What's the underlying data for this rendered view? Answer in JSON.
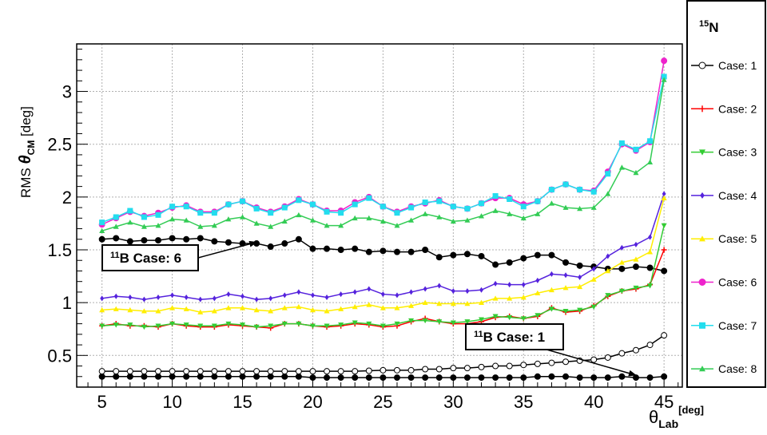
{
  "chart_data": {
    "type": "line",
    "legend": {
      "title_sup": "15",
      "title_main": "N",
      "placement": "right"
    },
    "xlabel": {
      "main": "θ",
      "sub": "Lab",
      "sup": "[deg]"
    },
    "ylabel": {
      "prefix": "RMS ",
      "main": "θ",
      "sub": "CM",
      "suffix": " [deg]"
    },
    "xlim": [
      3.2,
      46.3
    ],
    "ylim": [
      0.2,
      3.45
    ],
    "xticks": [
      5,
      10,
      15,
      20,
      25,
      30,
      35,
      40,
      45
    ],
    "yticks": [
      0.5,
      1,
      1.5,
      2,
      2.5,
      3
    ],
    "xtick_labels": [
      "5",
      "10",
      "15",
      "20",
      "25",
      "30",
      "35",
      "40",
      "45"
    ],
    "ytick_labels": [
      "0.5",
      "1",
      "1.5",
      "2",
      "2.5",
      "3"
    ],
    "grid": true,
    "x": [
      5,
      6,
      7,
      8,
      9,
      10,
      11,
      12,
      13,
      14,
      15,
      16,
      17,
      18,
      19,
      20,
      21,
      22,
      23,
      24,
      25,
      26,
      27,
      28,
      29,
      30,
      31,
      32,
      33,
      34,
      35,
      36,
      37,
      38,
      39,
      40,
      41,
      42,
      43,
      44,
      45
    ],
    "series": [
      {
        "name": "Case: 1",
        "color": "#000000",
        "marker": "open-circle",
        "values": [
          0.35,
          0.35,
          0.35,
          0.35,
          0.35,
          0.35,
          0.35,
          0.35,
          0.35,
          0.35,
          0.35,
          0.35,
          0.35,
          0.35,
          0.35,
          0.35,
          0.35,
          0.35,
          0.35,
          0.355,
          0.36,
          0.36,
          0.36,
          0.37,
          0.37,
          0.38,
          0.38,
          0.39,
          0.4,
          0.4,
          0.41,
          0.42,
          0.43,
          0.44,
          0.45,
          0.46,
          0.48,
          0.52,
          0.55,
          0.6,
          0.69
        ]
      },
      {
        "name": "Case: 2",
        "color": "#ff0000",
        "marker": "plus",
        "values": [
          0.78,
          0.8,
          0.78,
          0.78,
          0.77,
          0.8,
          0.78,
          0.77,
          0.77,
          0.79,
          0.78,
          0.77,
          0.76,
          0.8,
          0.8,
          0.78,
          0.77,
          0.78,
          0.8,
          0.79,
          0.77,
          0.78,
          0.82,
          0.85,
          0.82,
          0.8,
          0.8,
          0.82,
          0.86,
          0.87,
          0.85,
          0.87,
          0.95,
          0.91,
          0.92,
          0.97,
          1.06,
          1.11,
          1.13,
          1.17,
          1.5
        ]
      },
      {
        "name": "Case: 3",
        "color": "#33cc33",
        "marker": "triangle-down",
        "values": [
          0.78,
          0.79,
          0.79,
          0.77,
          0.78,
          0.8,
          0.79,
          0.78,
          0.78,
          0.8,
          0.79,
          0.77,
          0.78,
          0.8,
          0.8,
          0.78,
          0.78,
          0.79,
          0.81,
          0.8,
          0.78,
          0.8,
          0.83,
          0.83,
          0.82,
          0.81,
          0.82,
          0.84,
          0.87,
          0.86,
          0.85,
          0.88,
          0.94,
          0.92,
          0.93,
          0.96,
          1.07,
          1.11,
          1.14,
          1.16,
          1.73
        ]
      },
      {
        "name": "Case: 4",
        "color": "#5522dd",
        "marker": "diamond",
        "values": [
          1.04,
          1.06,
          1.05,
          1.03,
          1.05,
          1.07,
          1.05,
          1.03,
          1.04,
          1.08,
          1.06,
          1.03,
          1.04,
          1.07,
          1.1,
          1.07,
          1.05,
          1.08,
          1.1,
          1.13,
          1.08,
          1.07,
          1.1,
          1.13,
          1.16,
          1.11,
          1.11,
          1.12,
          1.18,
          1.17,
          1.17,
          1.21,
          1.27,
          1.26,
          1.24,
          1.32,
          1.44,
          1.52,
          1.55,
          1.62,
          2.03
        ]
      },
      {
        "name": "Case: 5",
        "color": "#ffee00",
        "marker": "triangle-up",
        "values": [
          0.93,
          0.94,
          0.93,
          0.92,
          0.92,
          0.95,
          0.94,
          0.91,
          0.92,
          0.95,
          0.95,
          0.93,
          0.92,
          0.95,
          0.96,
          0.93,
          0.92,
          0.94,
          0.96,
          0.98,
          0.95,
          0.95,
          0.97,
          1.0,
          0.99,
          0.99,
          0.99,
          1.0,
          1.04,
          1.04,
          1.05,
          1.09,
          1.12,
          1.14,
          1.15,
          1.22,
          1.3,
          1.38,
          1.41,
          1.48,
          1.99
        ]
      },
      {
        "name": "Case: 6",
        "color": "#ee22cc",
        "marker": "circle",
        "values": [
          1.74,
          1.8,
          1.86,
          1.82,
          1.85,
          1.9,
          1.92,
          1.86,
          1.86,
          1.93,
          1.96,
          1.9,
          1.86,
          1.91,
          1.98,
          1.93,
          1.87,
          1.87,
          1.95,
          2.0,
          1.91,
          1.86,
          1.91,
          1.94,
          1.97,
          1.91,
          1.89,
          1.94,
          1.99,
          1.99,
          1.93,
          1.96,
          2.07,
          2.12,
          2.07,
          2.06,
          2.24,
          2.5,
          2.44,
          2.52,
          3.29
        ]
      },
      {
        "name": "Case: 7",
        "color": "#22ddee",
        "marker": "square",
        "values": [
          1.76,
          1.81,
          1.87,
          1.81,
          1.83,
          1.91,
          1.91,
          1.85,
          1.85,
          1.93,
          1.96,
          1.89,
          1.85,
          1.9,
          1.97,
          1.93,
          1.86,
          1.85,
          1.93,
          1.99,
          1.91,
          1.85,
          1.9,
          1.95,
          1.96,
          1.91,
          1.89,
          1.94,
          2.01,
          1.98,
          1.91,
          1.96,
          2.07,
          2.12,
          2.07,
          2.05,
          2.22,
          2.51,
          2.45,
          2.53,
          3.14
        ]
      },
      {
        "name": "Case: 8",
        "color": "#33cc55",
        "marker": "triangle-up",
        "values": [
          1.68,
          1.72,
          1.76,
          1.72,
          1.73,
          1.79,
          1.78,
          1.72,
          1.73,
          1.79,
          1.81,
          1.75,
          1.72,
          1.77,
          1.83,
          1.78,
          1.73,
          1.73,
          1.8,
          1.8,
          1.77,
          1.73,
          1.78,
          1.84,
          1.81,
          1.77,
          1.78,
          1.82,
          1.87,
          1.84,
          1.8,
          1.84,
          1.94,
          1.9,
          1.89,
          1.9,
          2.03,
          2.28,
          2.23,
          2.33,
          3.11
        ]
      }
    ],
    "extra_series": [
      {
        "label": "B Case: 6",
        "color": "#000000",
        "marker": "circle",
        "values": [
          1.6,
          1.61,
          1.58,
          1.59,
          1.59,
          1.61,
          1.6,
          1.61,
          1.58,
          1.57,
          1.56,
          1.56,
          1.53,
          1.56,
          1.6,
          1.51,
          1.51,
          1.5,
          1.51,
          1.48,
          1.49,
          1.48,
          1.48,
          1.5,
          1.43,
          1.45,
          1.46,
          1.44,
          1.36,
          1.38,
          1.42,
          1.45,
          1.45,
          1.38,
          1.35,
          1.34,
          1.32,
          1.32,
          1.34,
          1.33,
          1.3
        ]
      },
      {
        "label": "B Case: 1",
        "color": "#000000",
        "marker": "circle",
        "values": [
          0.3,
          0.3,
          0.3,
          0.3,
          0.3,
          0.3,
          0.3,
          0.3,
          0.3,
          0.3,
          0.3,
          0.3,
          0.3,
          0.3,
          0.3,
          0.29,
          0.29,
          0.29,
          0.29,
          0.29,
          0.29,
          0.29,
          0.29,
          0.29,
          0.29,
          0.29,
          0.29,
          0.29,
          0.29,
          0.29,
          0.29,
          0.3,
          0.3,
          0.3,
          0.29,
          0.29,
          0.29,
          0.3,
          0.29,
          0.29,
          0.3
        ]
      }
    ],
    "annotations": [
      {
        "sup": "11",
        "text": "B Case: 6",
        "point_to": [
          16,
          1.55
        ]
      },
      {
        "sup": "11",
        "text": "B Case: 1",
        "point_to": [
          43,
          0.29
        ]
      }
    ]
  }
}
